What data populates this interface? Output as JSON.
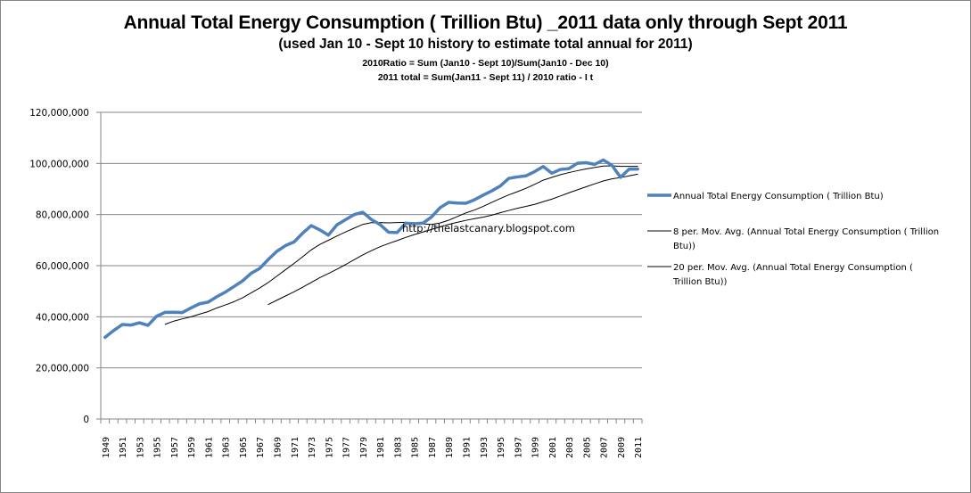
{
  "chart_data": {
    "type": "line",
    "title": "Annual Total Energy Consumption ( Trillion Btu) _2011 data only through Sept 2011",
    "subtitle": "(used Jan 10 - Sept 10 history to estimate total annual for 2011)",
    "notes": [
      "2010Ratio = Sum (Jan10 - Sept 10)/Sum(Jan10 - Dec 10)",
      "2011 total = Sum(Jan11 - Sept 11) / 2010 ratio   - I t"
    ],
    "watermark": "http://thelastcanary.blogspot.com",
    "xlabel": "",
    "ylabel": "",
    "ylim": [
      0,
      120000000
    ],
    "yticks": [
      0,
      20000000,
      40000000,
      60000000,
      80000000,
      100000000,
      120000000
    ],
    "ytick_labels": [
      "0",
      "20,000,000",
      "40,000,000",
      "60,000,000",
      "80,000,000",
      "100,000,000",
      "120,000,000"
    ],
    "grid": "horizontal",
    "legend_position": "right",
    "x": [
      1949,
      1950,
      1951,
      1952,
      1953,
      1954,
      1955,
      1956,
      1957,
      1958,
      1959,
      1960,
      1961,
      1962,
      1963,
      1964,
      1965,
      1966,
      1967,
      1968,
      1969,
      1970,
      1971,
      1972,
      1973,
      1974,
      1975,
      1976,
      1977,
      1978,
      1979,
      1980,
      1981,
      1982,
      1983,
      1984,
      1985,
      1986,
      1987,
      1988,
      1989,
      1990,
      1991,
      1992,
      1993,
      1994,
      1995,
      1996,
      1997,
      1998,
      1999,
      2000,
      2001,
      2002,
      2003,
      2004,
      2005,
      2006,
      2007,
      2008,
      2009,
      2010,
      2011
    ],
    "xtick_labels": [
      "1949",
      "1951",
      "1953",
      "1955",
      "1957",
      "1959",
      "1961",
      "1963",
      "1965",
      "1967",
      "1969",
      "1971",
      "1973",
      "1975",
      "1977",
      "1979",
      "1981",
      "1983",
      "1985",
      "1987",
      "1989",
      "1991",
      "1993",
      "1995",
      "1997",
      "1999",
      "2001",
      "2003",
      "2005",
      "2007",
      "2009",
      "2011"
    ],
    "series": [
      {
        "name": "Annual Total Energy Consumption ( Trillion Btu)",
        "color": "#4F81BD",
        "style": "thick",
        "values": [
          31980000,
          34620000,
          36970000,
          36750000,
          37660000,
          36640000,
          40210000,
          41750000,
          41790000,
          41650000,
          43470000,
          45090000,
          45740000,
          47830000,
          49650000,
          51820000,
          54020000,
          57020000,
          58910000,
          62420000,
          65620000,
          67840000,
          69290000,
          72700000,
          75680000,
          73990000,
          71970000,
          75990000,
          78000000,
          79990000,
          80900000,
          78070000,
          76110000,
          73100000,
          72970000,
          76630000,
          76390000,
          76650000,
          79020000,
          82700000,
          84790000,
          84490000,
          84440000,
          85790000,
          87570000,
          89240000,
          91150000,
          94160000,
          94730000,
          95160000,
          96790000,
          98810000,
          96170000,
          97650000,
          97970000,
          100090000,
          100280000,
          99640000,
          101360000,
          99300000,
          94570000,
          97770000,
          97800000
        ]
      },
      {
        "name": "8 per. Mov. Avg. (Annual Total Energy Consumption ( Trillion Btu))",
        "color": "#000000",
        "style": "thin",
        "period": 8,
        "values": []
      },
      {
        "name": "20 per. Mov. Avg. (Annual Total Energy Consumption ( Trillion Btu))",
        "color": "#000000",
        "style": "thin",
        "period": 20,
        "values": []
      }
    ]
  }
}
